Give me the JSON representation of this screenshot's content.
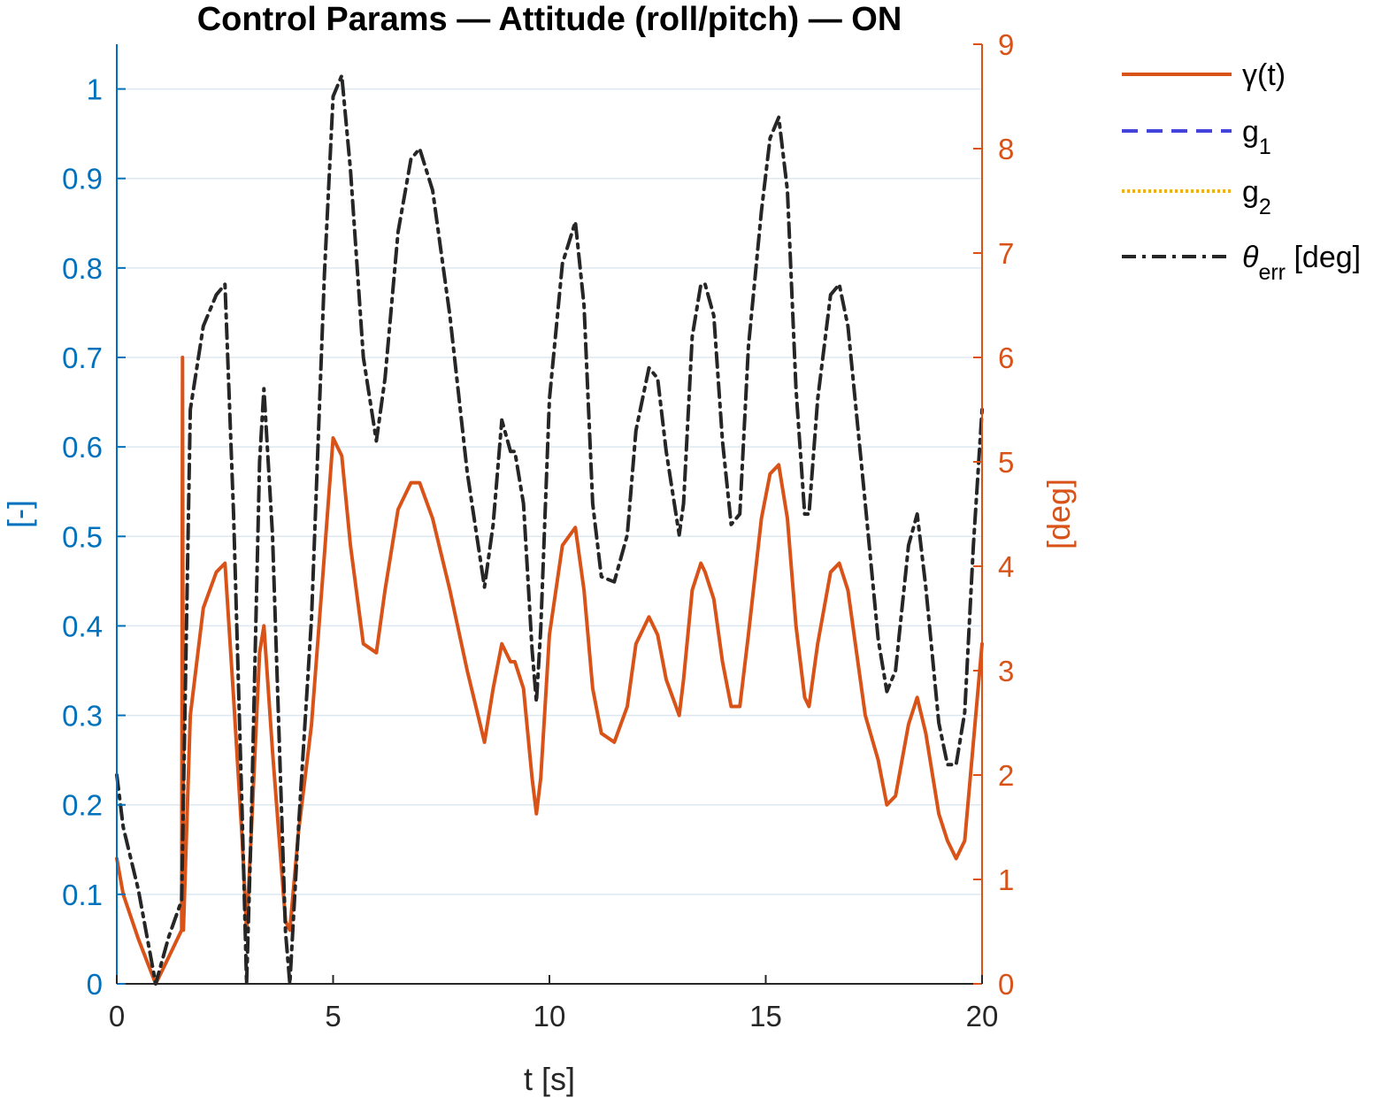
{
  "chart_data": {
    "type": "line",
    "title": "Control Params — Attitude (roll/pitch) — ON",
    "xlabel": "t [s]",
    "ylabel_left": "[-]",
    "ylabel_right": "[deg]",
    "xlim": [
      0,
      20
    ],
    "ylim_left": [
      0,
      1.05
    ],
    "ylim_right": [
      0,
      9
    ],
    "xticks": [
      "0",
      "5",
      "10",
      "15",
      "20"
    ],
    "yticks_left": [
      "0",
      "0.1",
      "0.2",
      "0.3",
      "0.4",
      "0.5",
      "0.6",
      "0.7",
      "0.8",
      "0.9",
      "1"
    ],
    "yticks_right": [
      "0",
      "1",
      "2",
      "3",
      "4",
      "5",
      "6",
      "7",
      "8",
      "9"
    ],
    "grid": "horizontal",
    "legend_position": "outside-right-top",
    "colors": {
      "left_axis": "#0072BD",
      "right_axis": "#D95319",
      "theta": "#262626",
      "g1": "#4444DD",
      "g2": "#EDB120",
      "grid": "#DCE8F0"
    },
    "legend": [
      {
        "key": "gamma",
        "text": "γ(t)",
        "sub": "",
        "after": "",
        "style": "solid",
        "color": "#D95319"
      },
      {
        "key": "g1",
        "text": "g",
        "sub": "1",
        "after": "",
        "style": "dashed",
        "color": "#4444DD"
      },
      {
        "key": "g2",
        "text": "g",
        "sub": "2",
        "after": "",
        "style": "dotted",
        "color": "#EDB120"
      },
      {
        "key": "theta",
        "text": "θ",
        "sub": "err",
        "after": " [deg]",
        "style": "dashdot",
        "color": "#262626"
      }
    ],
    "series": [
      {
        "name": "γ(t)",
        "axis": "left",
        "x": [
          0,
          0.15,
          0.5,
          0.9,
          1.2,
          1.5,
          1.52,
          1.54,
          1.7,
          2.0,
          2.3,
          2.5,
          2.7,
          2.9,
          3.0,
          3.1,
          3.3,
          3.4,
          3.6,
          3.9,
          4.0,
          4.2,
          4.5,
          4.8,
          5.0,
          5.2,
          5.4,
          5.7,
          6.0,
          6.2,
          6.5,
          6.8,
          7.0,
          7.3,
          7.7,
          8.1,
          8.5,
          8.7,
          8.9,
          9.1,
          9.2,
          9.4,
          9.6,
          9.7,
          9.8,
          10.0,
          10.3,
          10.6,
          10.8,
          11.0,
          11.2,
          11.5,
          11.8,
          12.0,
          12.3,
          12.5,
          12.7,
          13.0,
          13.1,
          13.3,
          13.5,
          13.6,
          13.8,
          14.0,
          14.2,
          14.4,
          14.6,
          14.9,
          15.1,
          15.3,
          15.5,
          15.7,
          15.9,
          16.0,
          16.2,
          16.5,
          16.7,
          16.9,
          17.3,
          17.6,
          17.8,
          18.0,
          18.3,
          18.5,
          18.7,
          19.0,
          19.2,
          19.4,
          19.6,
          19.8,
          20
        ],
        "values": [
          0.14,
          0.1,
          0.05,
          0.0,
          0.03,
          0.06,
          0.7,
          0.06,
          0.3,
          0.42,
          0.46,
          0.47,
          0.32,
          0.16,
          0.06,
          0.16,
          0.37,
          0.4,
          0.26,
          0.07,
          0.06,
          0.17,
          0.29,
          0.48,
          0.61,
          0.59,
          0.49,
          0.38,
          0.37,
          0.44,
          0.53,
          0.56,
          0.56,
          0.52,
          0.44,
          0.35,
          0.27,
          0.33,
          0.38,
          0.36,
          0.36,
          0.33,
          0.23,
          0.19,
          0.23,
          0.39,
          0.49,
          0.51,
          0.44,
          0.33,
          0.28,
          0.27,
          0.31,
          0.38,
          0.41,
          0.39,
          0.34,
          0.3,
          0.34,
          0.44,
          0.47,
          0.46,
          0.43,
          0.36,
          0.31,
          0.31,
          0.39,
          0.52,
          0.57,
          0.58,
          0.52,
          0.4,
          0.32,
          0.31,
          0.38,
          0.46,
          0.47,
          0.44,
          0.3,
          0.25,
          0.2,
          0.21,
          0.29,
          0.32,
          0.28,
          0.19,
          0.16,
          0.14,
          0.16,
          0.27,
          0.38
        ]
      },
      {
        "name": "θerr [deg]",
        "axis": "right",
        "x": [
          0,
          0.15,
          0.5,
          0.9,
          1.2,
          1.5,
          1.7,
          2.0,
          2.3,
          2.5,
          2.7,
          2.9,
          3.0,
          3.1,
          3.3,
          3.4,
          3.6,
          3.9,
          4.0,
          4.2,
          4.5,
          4.8,
          5.0,
          5.2,
          5.4,
          5.7,
          6.0,
          6.2,
          6.5,
          6.8,
          7.0,
          7.3,
          7.7,
          8.1,
          8.5,
          8.7,
          8.9,
          9.1,
          9.2,
          9.4,
          9.6,
          9.7,
          9.8,
          10.0,
          10.3,
          10.6,
          10.8,
          11.0,
          11.2,
          11.5,
          11.8,
          12.0,
          12.3,
          12.5,
          12.7,
          13.0,
          13.1,
          13.3,
          13.5,
          13.6,
          13.8,
          14.0,
          14.2,
          14.4,
          14.6,
          14.9,
          15.1,
          15.3,
          15.5,
          15.7,
          15.9,
          16.0,
          16.2,
          16.5,
          16.7,
          16.9,
          17.3,
          17.6,
          17.8,
          18.0,
          18.3,
          18.5,
          18.7,
          19.0,
          19.2,
          19.4,
          19.6,
          19.8,
          20
        ],
        "values": [
          2.0,
          1.5,
          0.9,
          0.0,
          0.45,
          0.8,
          5.5,
          6.3,
          6.6,
          6.7,
          4.5,
          1.6,
          0.0,
          1.4,
          5.0,
          5.7,
          4.3,
          0.5,
          0.0,
          1.5,
          3.5,
          6.8,
          8.5,
          8.7,
          7.8,
          6.0,
          5.2,
          5.8,
          7.2,
          7.9,
          8.0,
          7.6,
          6.4,
          4.9,
          3.8,
          4.4,
          5.4,
          5.1,
          5.1,
          4.6,
          3.2,
          2.7,
          3.4,
          5.6,
          6.9,
          7.3,
          6.5,
          4.6,
          3.9,
          3.85,
          4.3,
          5.3,
          5.9,
          5.8,
          5.1,
          4.3,
          4.6,
          6.2,
          6.7,
          6.7,
          6.4,
          5.2,
          4.4,
          4.5,
          6.1,
          7.4,
          8.1,
          8.3,
          7.6,
          5.7,
          4.5,
          4.5,
          5.6,
          6.6,
          6.7,
          6.3,
          4.6,
          3.3,
          2.8,
          3.0,
          4.2,
          4.5,
          3.8,
          2.5,
          2.1,
          2.1,
          2.6,
          4.2,
          5.5
        ]
      }
    ]
  }
}
